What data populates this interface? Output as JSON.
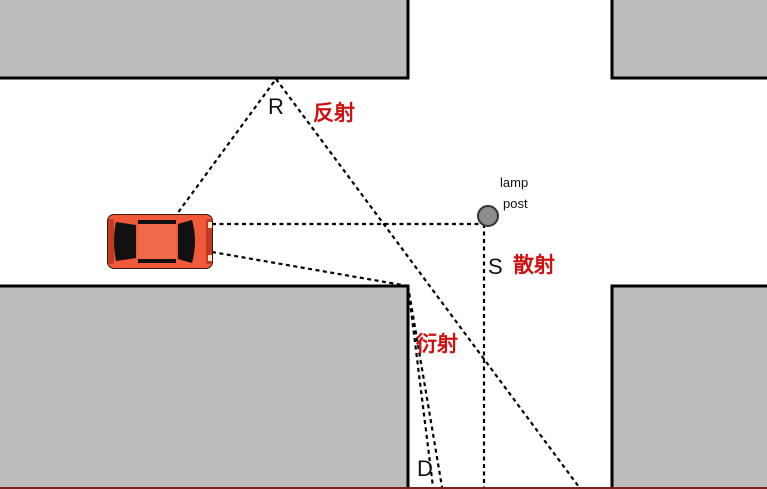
{
  "labels": {
    "reflection_point": "R",
    "reflection_text": "反射",
    "scattering_point": "S",
    "scattering_text": "散射",
    "diffraction_point": "D",
    "diffraction_text": "衍射",
    "lamp_post_line1": "lamp",
    "lamp_post_line2": "post"
  },
  "colors": {
    "building_fill": "#bcbcbc",
    "building_stroke": "#000000",
    "road": "#ffffff",
    "red_label": "#cc1111",
    "car_body": "#f05a3a",
    "car_glass": "#111111",
    "lamp_fill": "#8c8c8c",
    "ray": "#000000"
  },
  "icons": {
    "car": "car-top-view-icon",
    "lamp_post": "lamp-post-icon"
  }
}
